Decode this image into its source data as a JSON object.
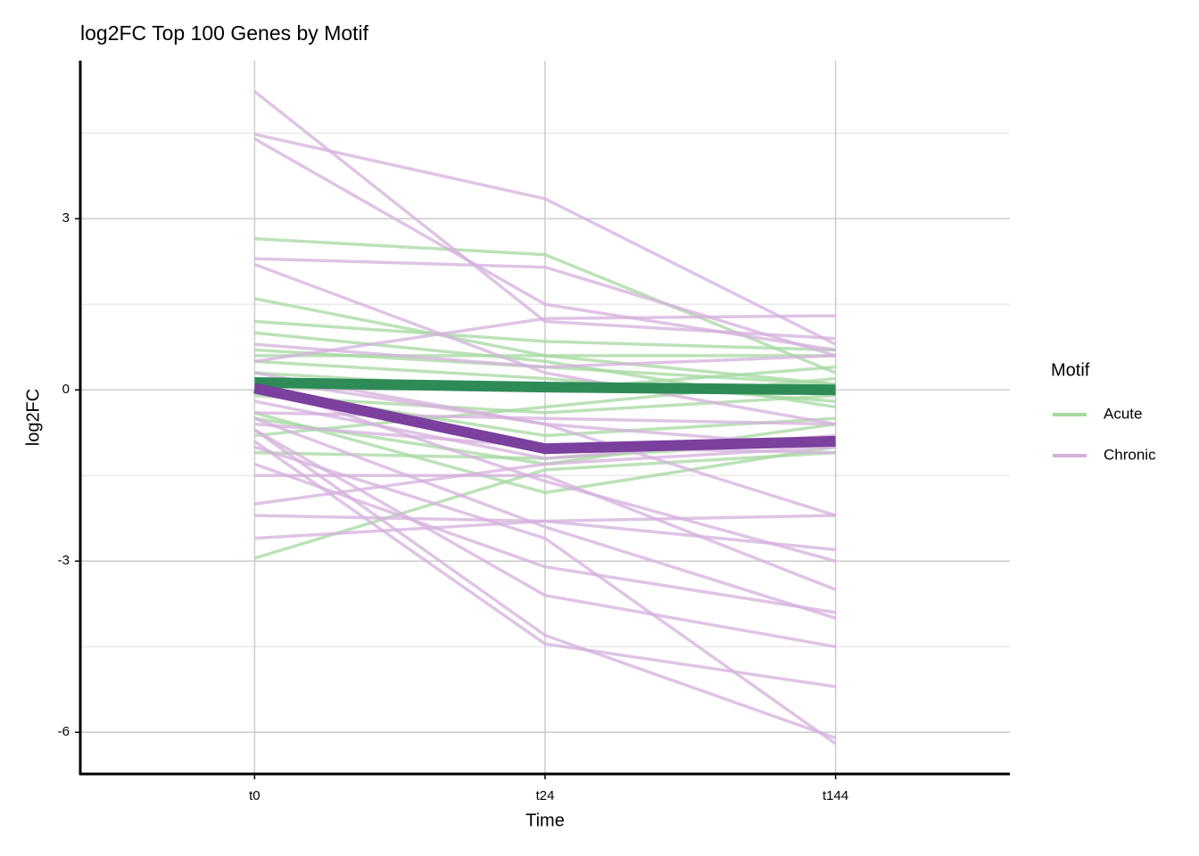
{
  "chart_data": {
    "type": "line",
    "title": "log2FC Top 100 Genes by Motif",
    "x_label": "Time",
    "y_label": "log2FC",
    "categories": [
      "t0",
      "t24",
      "t144"
    ],
    "ylim": [
      -6.73,
      5.77
    ],
    "yticks": [
      -6,
      -3,
      0,
      3
    ],
    "minor_grid": [
      -4.5,
      -1.5,
      1.5,
      4.5
    ],
    "grid": true,
    "legend_title": "Motif",
    "legend_position": "right",
    "series": [
      {
        "name": "Acute",
        "color": "#a6d8a0",
        "mean_color": "#2e8b57",
        "mean": [
          0.13,
          0.05,
          0.0
        ],
        "lines": [
          [
            2.65,
            2.37,
            0.3
          ],
          [
            -2.95,
            -1.4,
            -1.1
          ],
          [
            1.6,
            0.6,
            0.1
          ],
          [
            1.2,
            0.85,
            0.7
          ],
          [
            1.0,
            0.5,
            -0.3
          ],
          [
            0.7,
            0.4,
            0.1
          ],
          [
            0.5,
            0.2,
            -0.2
          ],
          [
            0.3,
            0.0,
            0.4
          ],
          [
            -0.1,
            -0.4,
            -0.1
          ],
          [
            -0.5,
            -1.3,
            -0.6
          ],
          [
            -1.1,
            -1.2,
            -0.9
          ],
          [
            -0.4,
            -1.8,
            -1.0
          ],
          [
            0.0,
            -0.8,
            -0.5
          ],
          [
            0.6,
            0.6,
            0.6
          ],
          [
            -0.8,
            -0.3,
            0.2
          ]
        ]
      },
      {
        "name": "Chronic",
        "color": "#d4b0dc",
        "mean_color": "#7b3f9e",
        "mean": [
          0.03,
          -1.03,
          -0.9
        ],
        "lines": [
          [
            5.23,
            1.2,
            0.9
          ],
          [
            4.48,
            3.35,
            0.8
          ],
          [
            4.4,
            1.5,
            0.7
          ],
          [
            2.3,
            2.15,
            0.6
          ],
          [
            2.2,
            0.3,
            -0.6
          ],
          [
            0.5,
            1.25,
            1.3
          ],
          [
            0.3,
            -0.6,
            -2.2
          ],
          [
            0.1,
            -1.6,
            -3.0
          ],
          [
            -0.5,
            -2.4,
            -4.0
          ],
          [
            -0.7,
            -4.3,
            -6.1
          ],
          [
            -0.9,
            -4.45,
            -5.2
          ],
          [
            -0.7,
            -3.6,
            -4.5
          ],
          [
            -1.3,
            -3.1,
            -3.9
          ],
          [
            -2.6,
            -2.3,
            -2.8
          ],
          [
            -2.2,
            -2.3,
            -2.2
          ],
          [
            -2.0,
            -1.3,
            -1.0
          ],
          [
            -1.5,
            -1.5,
            -3.5
          ],
          [
            -0.2,
            -1.2,
            -0.8
          ],
          [
            -0.4,
            -0.5,
            -0.6
          ],
          [
            0.2,
            -0.6,
            -1.0
          ],
          [
            0.8,
            0.4,
            0.6
          ],
          [
            -1.0,
            -2.6,
            -6.2
          ],
          [
            -0.6,
            -1.0,
            -1.1
          ]
        ]
      }
    ]
  }
}
